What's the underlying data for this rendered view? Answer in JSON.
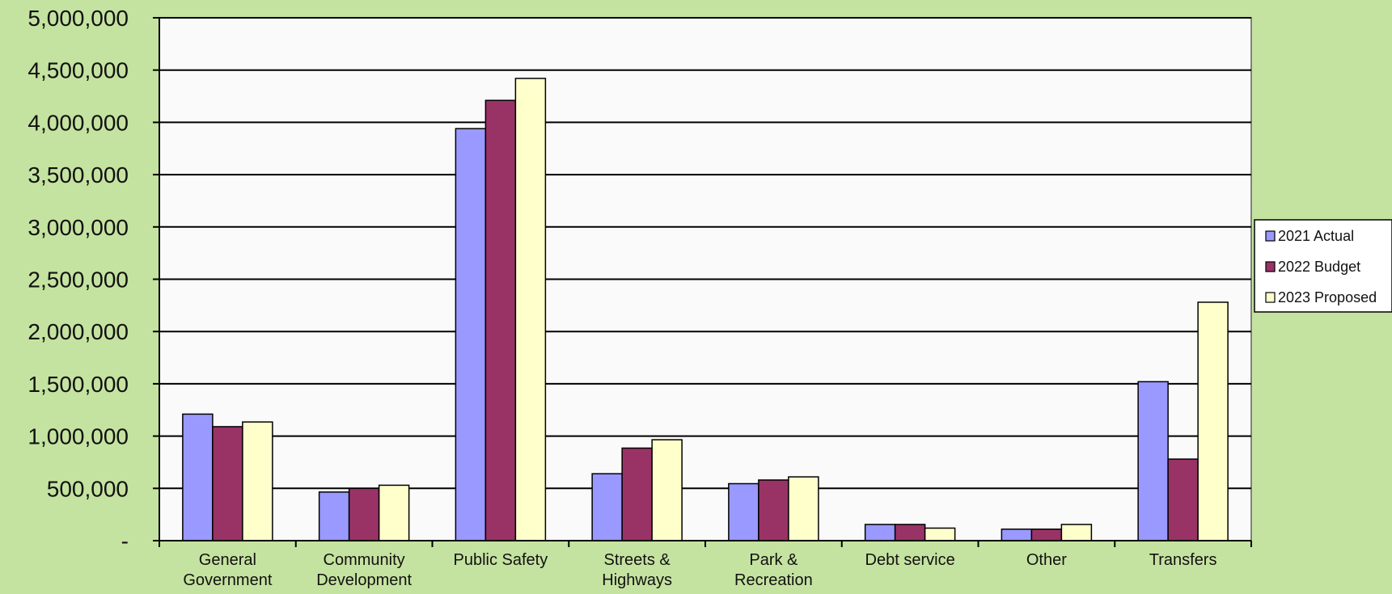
{
  "chart_data": {
    "type": "bar",
    "title": "",
    "xlabel": "",
    "ylabel": "",
    "categories": [
      [
        "General",
        "Government"
      ],
      [
        "Community",
        "Development"
      ],
      [
        "Public Safety"
      ],
      [
        "Streets &",
        "Highways"
      ],
      [
        "Park &",
        "Recreation"
      ],
      [
        "Debt service"
      ],
      [
        "Other"
      ],
      [
        "Transfers"
      ]
    ],
    "series": [
      {
        "name": "2021 Actual",
        "color": "#9999ff",
        "values": [
          1210000,
          465000,
          3940000,
          640000,
          545000,
          155000,
          110000,
          1520000
        ]
      },
      {
        "name": "2022 Budget",
        "color": "#993366",
        "values": [
          1090000,
          500000,
          4210000,
          885000,
          580000,
          155000,
          110000,
          780000
        ]
      },
      {
        "name": "2023 Proposed",
        "color": "#ffffcc",
        "values": [
          1135000,
          530000,
          4420000,
          965000,
          610000,
          120000,
          155000,
          2280000
        ]
      }
    ],
    "ylim": [
      0,
      5000000
    ],
    "yticks": [
      "-",
      "500,000",
      "1,000,000",
      "1,500,000",
      "2,000,000",
      "2,500,000",
      "3,000,000",
      "3,500,000",
      "4,000,000",
      "4,500,000",
      "5,000,000"
    ],
    "ytick_values": [
      0,
      500000,
      1000000,
      1500000,
      2000000,
      2500000,
      3000000,
      3500000,
      4000000,
      4500000,
      5000000
    ],
    "grid": true,
    "legend_position": "right",
    "colors": {
      "background": "#c5e3a0",
      "plot_area": "#fafafa",
      "gridline": "#000000",
      "bar_outline": "#000000"
    }
  }
}
